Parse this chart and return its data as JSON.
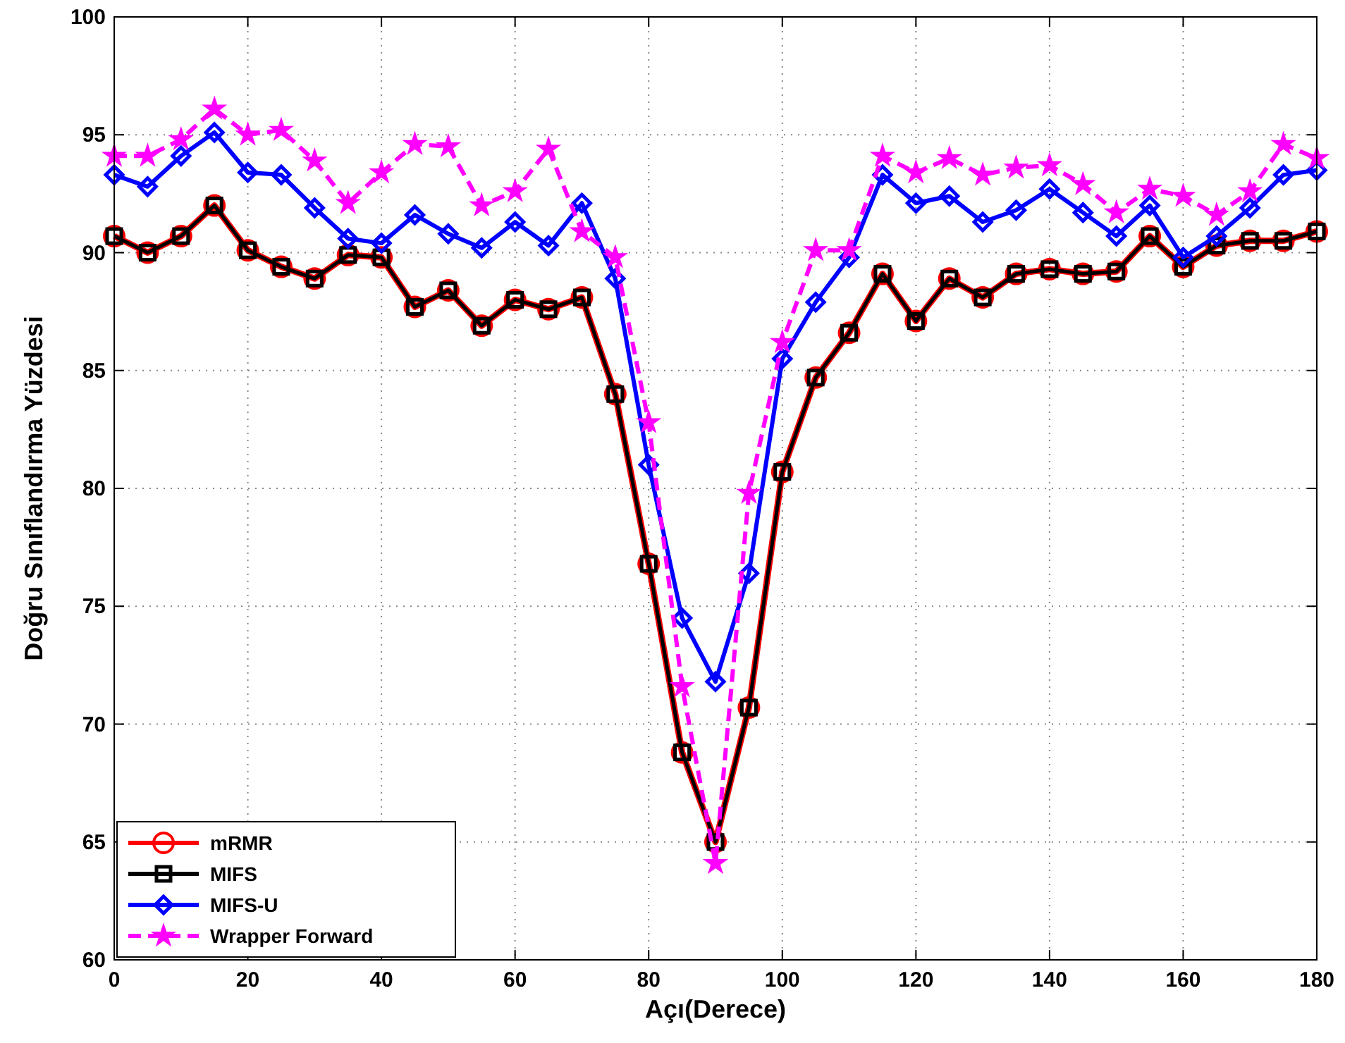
{
  "chart_data": {
    "type": "line",
    "xlabel": "Açı(Derece)",
    "ylabel": "Doğru Sınıflandırma Yüzdesi",
    "x": [
      0,
      5,
      10,
      15,
      20,
      25,
      30,
      35,
      40,
      45,
      50,
      55,
      60,
      65,
      70,
      75,
      80,
      85,
      90,
      95,
      100,
      105,
      110,
      115,
      120,
      125,
      130,
      135,
      140,
      145,
      150,
      155,
      160,
      165,
      170,
      175,
      180
    ],
    "xlim": [
      0,
      180
    ],
    "xticks": [
      0,
      20,
      40,
      60,
      80,
      100,
      120,
      140,
      160,
      180
    ],
    "ylim": [
      60,
      100
    ],
    "yticks": [
      60,
      65,
      70,
      75,
      80,
      85,
      90,
      95,
      100
    ],
    "grid": true,
    "legend": "bottom left",
    "series": [
      {
        "name": "mRMR",
        "color": "#ff0000",
        "marker": "circle",
        "line_style": "solid",
        "values": [
          90.7,
          90,
          90.7,
          92,
          90.1,
          89.4,
          88.9,
          89.9,
          89.8,
          87.7,
          88.4,
          86.9,
          88,
          87.6,
          88.1,
          84,
          76.8,
          68.8,
          65,
          70.7,
          80.7,
          84.7,
          86.6,
          89.1,
          87.1,
          88.9,
          88.1,
          89.1,
          89.3,
          89.1,
          89.2,
          90.7,
          89.4,
          90.3,
          90.5,
          90.5,
          90.9
        ]
      },
      {
        "name": "MIFS",
        "color": "#000000",
        "marker": "square",
        "line_style": "solid",
        "values": [
          90.7,
          90,
          90.7,
          92,
          90.1,
          89.4,
          88.9,
          89.9,
          89.8,
          87.7,
          88.4,
          86.9,
          88,
          87.6,
          88.1,
          84,
          76.8,
          68.8,
          65,
          70.7,
          80.7,
          84.7,
          86.6,
          89.1,
          87.1,
          88.9,
          88.1,
          89.1,
          89.3,
          89.1,
          89.2,
          90.7,
          89.4,
          90.3,
          90.5,
          90.5,
          90.9
        ]
      },
      {
        "name": "MIFS-U",
        "color": "#0000ff",
        "marker": "diamond",
        "line_style": "solid",
        "values": [
          93.3,
          92.8,
          94.1,
          95.1,
          93.4,
          93.3,
          91.9,
          90.6,
          90.4,
          91.6,
          90.8,
          90.2,
          91.3,
          90.3,
          92.1,
          88.9,
          81,
          74.5,
          71.8,
          76.4,
          85.5,
          87.9,
          89.8,
          93.3,
          92.1,
          92.4,
          91.3,
          91.8,
          92.7,
          91.7,
          90.7,
          92,
          89.8,
          90.7,
          91.9,
          93.3,
          93.5
        ]
      },
      {
        "name": "Wrapper Forward",
        "color": "#ff00ff",
        "marker": "star",
        "line_style": "dashed",
        "values": [
          94.1,
          94.1,
          94.8,
          96.1,
          95,
          95.2,
          93.9,
          92.1,
          93.4,
          94.6,
          94.5,
          92,
          92.6,
          94.4,
          90.9,
          89.8,
          82.8,
          71.6,
          64.1,
          79.8,
          86.2,
          90.1,
          90.1,
          94.1,
          93.4,
          94,
          93.3,
          93.6,
          93.7,
          92.9,
          91.7,
          92.7,
          92.4,
          91.6,
          92.6,
          94.6,
          94
        ]
      }
    ]
  }
}
